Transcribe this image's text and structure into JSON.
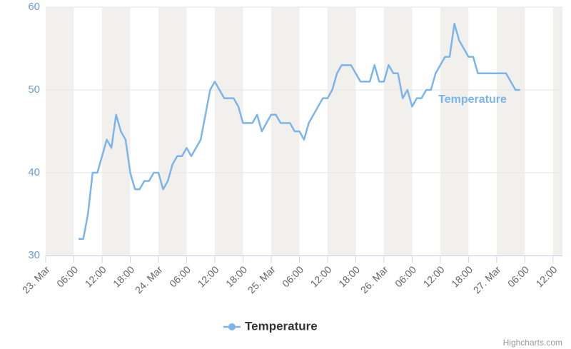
{
  "chart_data": {
    "type": "line",
    "x": [
      "03-23 07:00",
      "03-23 08:00",
      "03-23 09:00",
      "03-23 10:00",
      "03-23 11:00",
      "03-23 12:00",
      "03-23 13:00",
      "03-23 14:00",
      "03-23 15:00",
      "03-23 16:00",
      "03-23 17:00",
      "03-23 18:00",
      "03-23 19:00",
      "03-23 20:00",
      "03-23 21:00",
      "03-23 22:00",
      "03-23 23:00",
      "03-24 00:00",
      "03-24 01:00",
      "03-24 02:00",
      "03-24 03:00",
      "03-24 04:00",
      "03-24 05:00",
      "03-24 06:00",
      "03-24 07:00",
      "03-24 08:00",
      "03-24 09:00",
      "03-24 10:00",
      "03-24 11:00",
      "03-24 12:00",
      "03-24 13:00",
      "03-24 14:00",
      "03-24 15:00",
      "03-24 16:00",
      "03-24 17:00",
      "03-24 18:00",
      "03-24 19:00",
      "03-24 20:00",
      "03-24 21:00",
      "03-24 22:00",
      "03-24 23:00",
      "03-25 00:00",
      "03-25 01:00",
      "03-25 02:00",
      "03-25 03:00",
      "03-25 04:00",
      "03-25 05:00",
      "03-25 06:00",
      "03-25 07:00",
      "03-25 08:00",
      "03-25 09:00",
      "03-25 10:00",
      "03-25 11:00",
      "03-25 12:00",
      "03-25 13:00",
      "03-25 14:00",
      "03-25 15:00",
      "03-25 16:00",
      "03-25 17:00",
      "03-25 18:00",
      "03-25 19:00",
      "03-25 20:00",
      "03-25 21:00",
      "03-25 22:00",
      "03-25 23:00",
      "03-26 00:00",
      "03-26 01:00",
      "03-26 02:00",
      "03-26 03:00",
      "03-26 04:00",
      "03-26 05:00",
      "03-26 06:00",
      "03-26 07:00",
      "03-26 08:00",
      "03-26 09:00",
      "03-26 10:00",
      "03-26 11:00",
      "03-26 12:00",
      "03-26 13:00",
      "03-26 14:00",
      "03-26 15:00",
      "03-26 16:00",
      "03-26 17:00",
      "03-26 18:00",
      "03-26 19:00",
      "03-26 20:00",
      "03-26 21:00",
      "03-26 22:00",
      "03-26 23:00",
      "03-27 00:00",
      "03-27 01:00",
      "03-27 02:00",
      "03-27 03:00",
      "03-27 04:00",
      "03-27 05:00"
    ],
    "series": [
      {
        "name": "Temperature",
        "color": "#7cb5ec",
        "values": [
          32,
          32,
          35,
          40,
          40,
          42,
          44,
          43,
          47,
          45,
          44,
          40,
          38,
          38,
          39,
          39,
          40,
          40,
          38,
          39,
          41,
          42,
          42,
          43,
          42,
          43,
          44,
          47,
          50,
          51,
          50,
          49,
          49,
          49,
          48,
          46,
          46,
          46,
          47,
          45,
          46,
          47,
          47,
          46,
          46,
          46,
          45,
          45,
          44,
          46,
          47,
          48,
          49,
          49,
          50,
          52,
          53,
          53,
          53,
          52,
          51,
          51,
          51,
          53,
          51,
          51,
          53,
          52,
          52,
          49,
          50,
          48,
          49,
          49,
          50,
          50,
          52,
          53,
          54,
          54,
          58,
          56,
          55,
          54,
          54,
          52,
          52,
          52,
          52,
          52,
          52,
          52,
          51,
          50,
          50
        ]
      }
    ],
    "xlim": [
      "03-23 00:00",
      "03-27 14:00"
    ],
    "xticks": [
      {
        "value": "03-23 00:00",
        "label": "23. Mar"
      },
      {
        "value": "03-23 06:00",
        "label": "06:00"
      },
      {
        "value": "03-23 12:00",
        "label": "12:00"
      },
      {
        "value": "03-23 18:00",
        "label": "18:00"
      },
      {
        "value": "03-24 00:00",
        "label": "24. Mar"
      },
      {
        "value": "03-24 06:00",
        "label": "06:00"
      },
      {
        "value": "03-24 12:00",
        "label": "12:00"
      },
      {
        "value": "03-24 18:00",
        "label": "18:00"
      },
      {
        "value": "03-25 00:00",
        "label": "25. Mar"
      },
      {
        "value": "03-25 06:00",
        "label": "06:00"
      },
      {
        "value": "03-25 12:00",
        "label": "12:00"
      },
      {
        "value": "03-25 18:00",
        "label": "18:00"
      },
      {
        "value": "03-26 00:00",
        "label": "26. Mar"
      },
      {
        "value": "03-26 06:00",
        "label": "06:00"
      },
      {
        "value": "03-26 12:00",
        "label": "12:00"
      },
      {
        "value": "03-26 18:00",
        "label": "18:00"
      },
      {
        "value": "03-27 00:00",
        "label": "27. Mar"
      },
      {
        "value": "03-27 06:00",
        "label": "06:00"
      },
      {
        "value": "03-27 12:00",
        "label": "12:00"
      }
    ],
    "ylim": [
      30,
      60
    ],
    "yticks": [
      30,
      40,
      50,
      60
    ],
    "grid": true,
    "plot_bands": [
      [
        "03-23 00:00",
        "03-23 06:00"
      ],
      [
        "03-23 12:00",
        "03-23 18:00"
      ],
      [
        "03-24 00:00",
        "03-24 06:00"
      ],
      [
        "03-24 12:00",
        "03-24 18:00"
      ],
      [
        "03-25 00:00",
        "03-25 06:00"
      ],
      [
        "03-25 12:00",
        "03-25 18:00"
      ],
      [
        "03-26 00:00",
        "03-26 06:00"
      ],
      [
        "03-26 12:00",
        "03-26 18:00"
      ],
      [
        "03-27 00:00",
        "03-27 06:00"
      ],
      [
        "03-27 12:00",
        "03-27 14:00"
      ]
    ],
    "plot_band_color": "#f2f0ec",
    "legend": "bottom",
    "credits": "Highcharts.com"
  }
}
